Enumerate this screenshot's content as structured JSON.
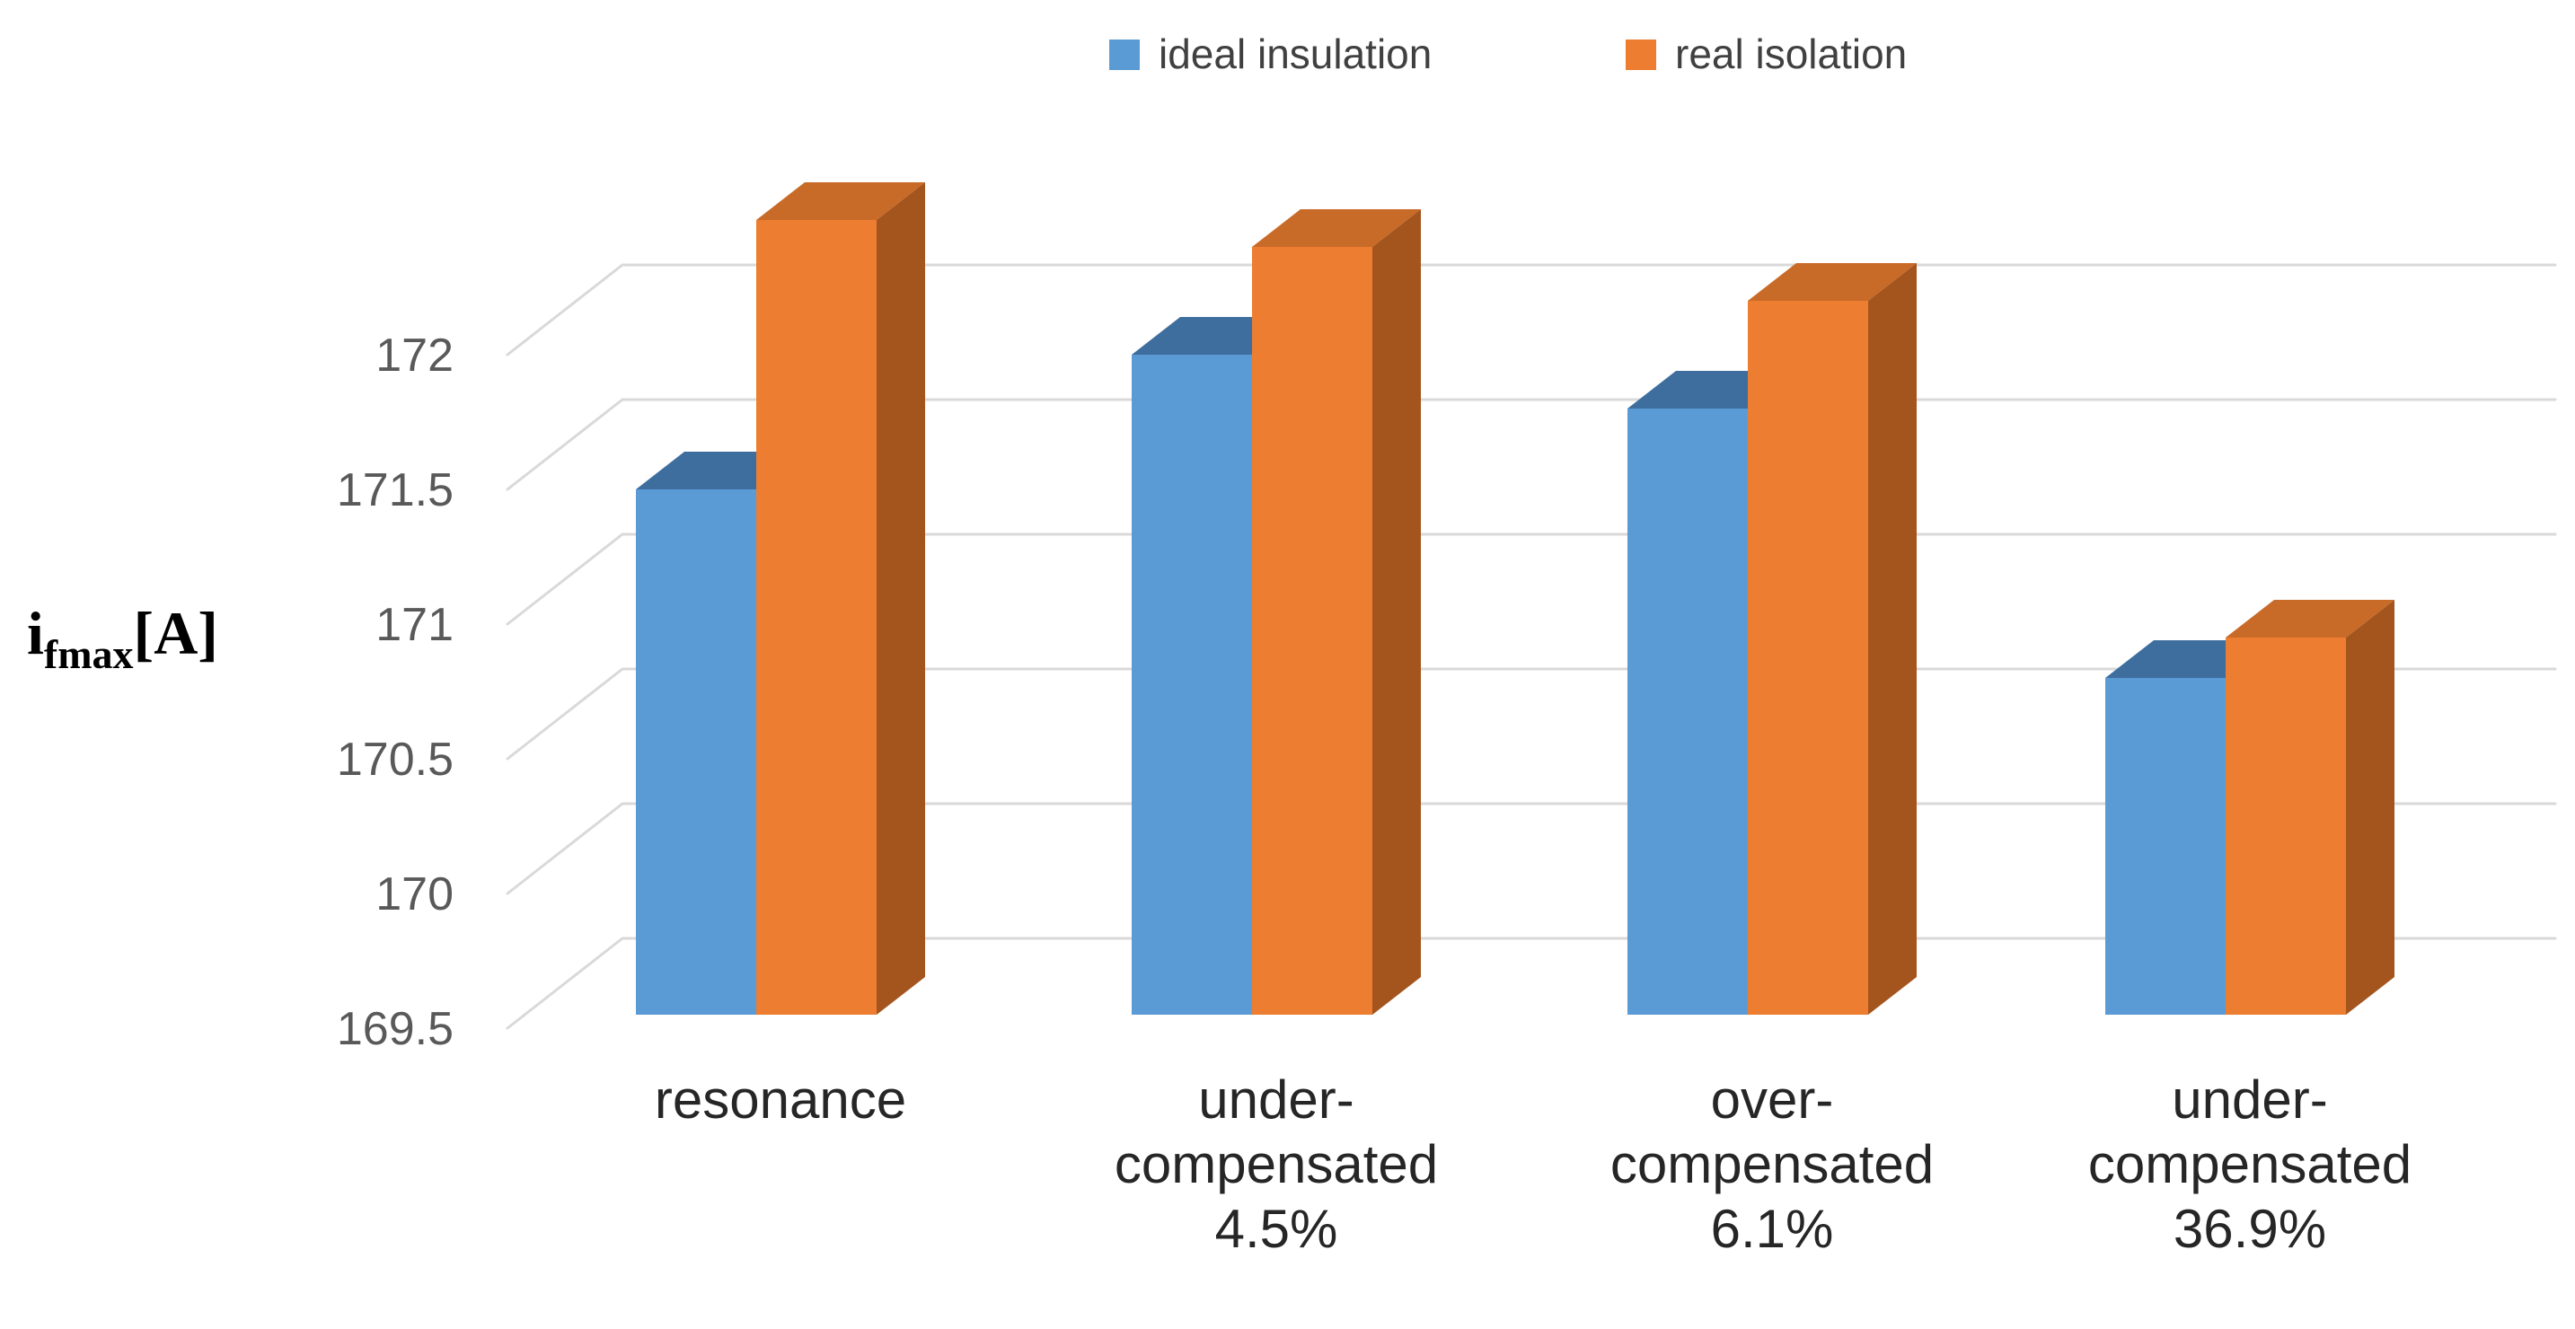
{
  "chart_data": {
    "type": "bar",
    "projection": "3d-oblique",
    "title": "",
    "ylabel_parts": {
      "base": "i",
      "sub": "fmax",
      "unit": "[A]"
    },
    "categories": [
      {
        "label": "resonance",
        "lines": [
          "resonance"
        ]
      },
      {
        "label": "under-compensated 4.5%",
        "lines": [
          "under-",
          "compensated",
          "4.5%"
        ]
      },
      {
        "label": "over-compensated 6.1%",
        "lines": [
          "over-",
          "compensated",
          "6.1%"
        ]
      },
      {
        "label": "under-compensated 36.9%",
        "lines": [
          "under-",
          "compensated",
          "36.9%"
        ]
      }
    ],
    "series": [
      {
        "name": "ideal insulation",
        "values": [
          171.45,
          171.95,
          171.75,
          170.75
        ],
        "colors": {
          "front": "#5B9BD5",
          "top": "#3E6E9E",
          "side": "#2F5F8F"
        }
      },
      {
        "name": "real isolation",
        "values": [
          172.45,
          172.35,
          172.15,
          170.9
        ],
        "colors": {
          "front": "#ED7D31",
          "top": "#C96B28",
          "side": "#A4551E"
        }
      }
    ],
    "yticks": [
      172,
      171.5,
      171,
      170.5,
      170,
      169.5
    ],
    "ylim": [
      169.5,
      172.5
    ],
    "grid": true,
    "legend_position": "top-center",
    "gridline_color": "#D9D9D9",
    "tick_label_color": "#595959",
    "category_label_color": "#262626",
    "legend_text_color": "#404040",
    "background_color": "#FFFFFF"
  }
}
